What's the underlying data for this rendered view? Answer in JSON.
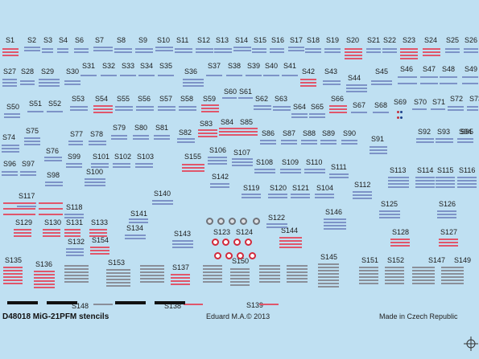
{
  "sheet": {
    "title": "D48018 MiG-21PFM stencils",
    "copyright": "Eduard M.A.© 2013",
    "made_in": "Made in Czech Republic",
    "colors": {
      "background": "#bfe0f2",
      "blue_mark": "#7d93c7",
      "red_mark": "#e0566b",
      "red_ring": "#d22a3c",
      "black_bar": "#111111"
    }
  },
  "labels": [
    "S1",
    "S2",
    "S3",
    "S4",
    "S6",
    "S7",
    "S8",
    "S9",
    "S10",
    "S11",
    "S12",
    "S13",
    "S14",
    "S15",
    "S16",
    "S17",
    "S18",
    "S19",
    "S20",
    "S21",
    "S22",
    "S23",
    "S24",
    "S25",
    "S26",
    "S27",
    "S28",
    "S29",
    "S30",
    "S31",
    "S32",
    "S33",
    "S34",
    "S35",
    "S36",
    "S37",
    "S38",
    "S39",
    "S40",
    "S41",
    "S42",
    "S43",
    "S44",
    "S45",
    "S46",
    "S47",
    "S48",
    "S49",
    "S50",
    "S51",
    "S52",
    "S53",
    "S54",
    "S55",
    "S56",
    "S57",
    "S58",
    "S59",
    "S60",
    "S61",
    "S62",
    "S63",
    "S64",
    "S65",
    "S66",
    "S67",
    "S68",
    "S69",
    "S70",
    "S71",
    "S72",
    "S73",
    "S74",
    "S75",
    "S76",
    "S77",
    "S78",
    "S79",
    "S80",
    "S81",
    "S82",
    "S83",
    "S84",
    "S85",
    "S86",
    "S87",
    "S88",
    "S89",
    "S90",
    "S91",
    "S92",
    "S93",
    "S94",
    "S95",
    "S96",
    "S97",
    "S98",
    "S99",
    "S100",
    "S101",
    "S102",
    "S103",
    "S104",
    "S106",
    "S107",
    "S108",
    "S109",
    "S110",
    "S111",
    "S112",
    "S113",
    "S114",
    "S115",
    "S116",
    "S117",
    "S118",
    "S119",
    "S120",
    "S121",
    "S122",
    "S123",
    "S124",
    "S125",
    "S126",
    "S127",
    "S128",
    "S129",
    "S130",
    "S131",
    "S132",
    "S133",
    "S134",
    "S135",
    "S136",
    "S137",
    "S138",
    "S139",
    "S140",
    "S141",
    "S142",
    "S143",
    "S144",
    "S145",
    "S146",
    "S147",
    "S148",
    "S149",
    "S150",
    "S151",
    "S152",
    "S153",
    "S154",
    "S155"
  ]
}
